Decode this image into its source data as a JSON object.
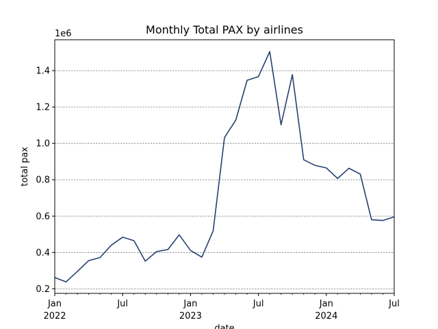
{
  "chart_data": {
    "type": "line",
    "title": "Monthly Total PAX by airlines",
    "xlabel": "date",
    "ylabel": "total pax",
    "y_multiplier_label": "1e6",
    "ylim": [
      0.175,
      1.57
    ],
    "xlim": [
      "2022-01",
      "2024-07"
    ],
    "grid": "y-major-dashed",
    "line_color": "#253f6e",
    "x_ticks": [
      {
        "date": "2022-01",
        "label": "Jan",
        "year": "2022"
      },
      {
        "date": "2022-07",
        "label": "Jul",
        "year": ""
      },
      {
        "date": "2023-01",
        "label": "Jan",
        "year": "2023"
      },
      {
        "date": "2023-07",
        "label": "Jul",
        "year": ""
      },
      {
        "date": "2024-01",
        "label": "Jan",
        "year": "2024"
      },
      {
        "date": "2024-07",
        "label": "Jul",
        "year": ""
      }
    ],
    "y_ticks": [
      {
        "value": 0.2,
        "label": "0.2"
      },
      {
        "value": 0.4,
        "label": "0.4"
      },
      {
        "value": 0.6,
        "label": "0.6"
      },
      {
        "value": 0.8,
        "label": "0.8"
      },
      {
        "value": 1.0,
        "label": "1.0"
      },
      {
        "value": 1.2,
        "label": "1.2"
      },
      {
        "value": 1.4,
        "label": "1.4"
      }
    ],
    "series": [
      {
        "x": [
          "2022-01",
          "2022-02",
          "2022-03",
          "2022-04",
          "2022-05",
          "2022-06",
          "2022-07",
          "2022-08",
          "2022-09",
          "2022-10",
          "2022-11",
          "2022-12",
          "2023-01",
          "2023-02",
          "2023-03",
          "2023-04",
          "2023-05",
          "2023-06",
          "2023-07",
          "2023-08",
          "2023-09",
          "2023-10",
          "2023-11",
          "2023-12",
          "2024-01",
          "2024-02",
          "2024-03",
          "2024-04",
          "2024-05",
          "2024-06",
          "2024-07"
        ],
        "values": [
          0.262,
          0.238,
          0.296,
          0.355,
          0.372,
          0.44,
          0.484,
          0.465,
          0.352,
          0.405,
          0.416,
          0.497,
          0.411,
          0.374,
          0.519,
          1.032,
          1.128,
          1.347,
          1.367,
          1.505,
          1.102,
          1.378,
          0.91,
          0.879,
          0.865,
          0.807,
          0.863,
          0.831,
          0.58,
          0.576,
          0.596
        ]
      }
    ]
  }
}
